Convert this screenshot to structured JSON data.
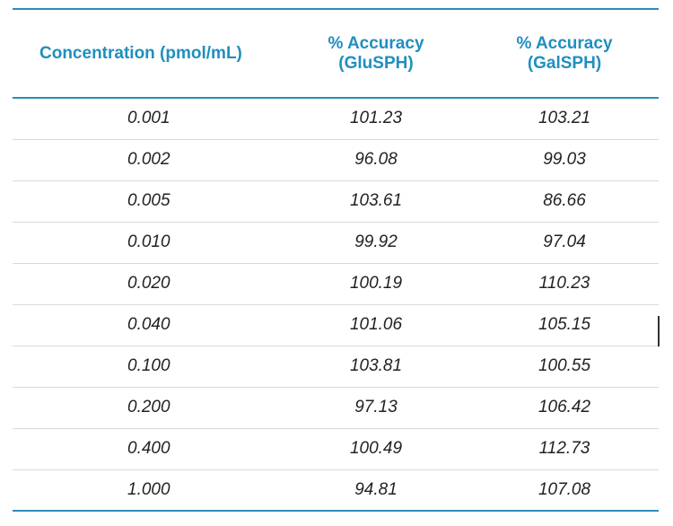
{
  "table": {
    "headers": {
      "concentration": "Concentration (pmol/mL)",
      "glu_line1": "% Accuracy",
      "glu_line2": "(GluSPH)",
      "gal_line1": "% Accuracy",
      "gal_line2": "(GalSPH)"
    },
    "rows": [
      {
        "concentration": "0.001",
        "glu": "101.23",
        "gal": "103.21"
      },
      {
        "concentration": "0.002",
        "glu": "96.08",
        "gal": "99.03"
      },
      {
        "concentration": "0.005",
        "glu": "103.61",
        "gal": "86.66"
      },
      {
        "concentration": "0.010",
        "glu": "99.92",
        "gal": "97.04"
      },
      {
        "concentration": "0.020",
        "glu": "100.19",
        "gal": "110.23"
      },
      {
        "concentration": "0.040",
        "glu": "101.06",
        "gal": "105.15"
      },
      {
        "concentration": "0.100",
        "glu": "103.81",
        "gal": "100.55"
      },
      {
        "concentration": "0.200",
        "glu": "97.13",
        "gal": "106.42"
      },
      {
        "concentration": "0.400",
        "glu": "100.49",
        "gal": "112.73"
      },
      {
        "concentration": "1.000",
        "glu": "94.81",
        "gal": "107.08"
      }
    ]
  },
  "colors": {
    "header_text": "#1f8fc0",
    "rule": "#2b8db6",
    "row_divider": "#d9d9d9",
    "body_text": "#222222"
  }
}
